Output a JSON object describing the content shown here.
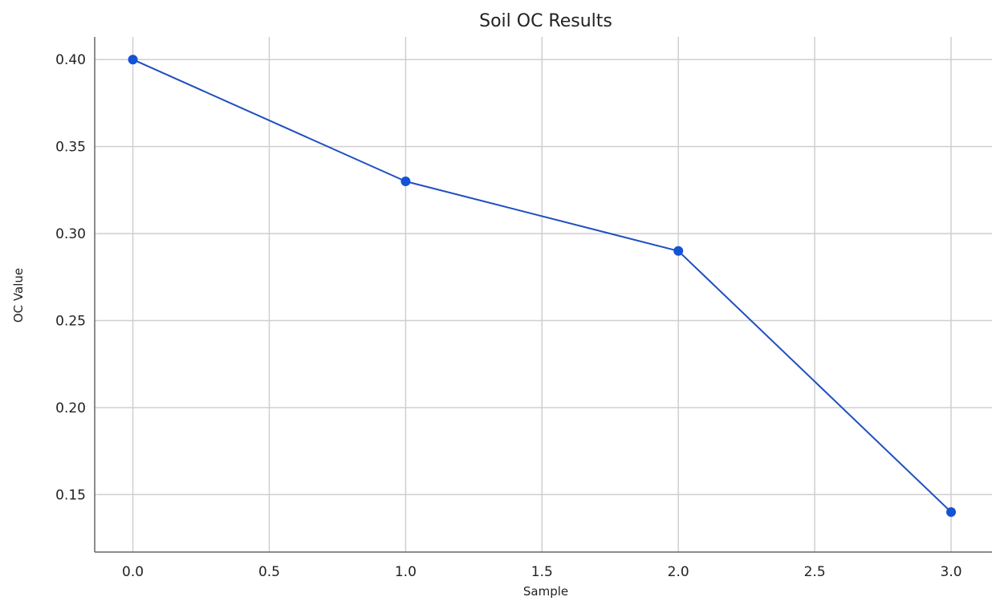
{
  "chart_data": {
    "type": "line",
    "title": "Soil OC Results",
    "xlabel": "Sample",
    "ylabel": "OC Value",
    "xlim": [
      -0.14,
      3.15
    ],
    "ylim": [
      0.117,
      0.413
    ],
    "xticks": [
      0.0,
      0.5,
      1.0,
      1.5,
      2.0,
      2.5,
      3.0
    ],
    "xtick_labels": [
      "0.0",
      "0.5",
      "1.0",
      "1.5",
      "2.0",
      "2.5",
      "3.0"
    ],
    "yticks": [
      0.15,
      0.2,
      0.25,
      0.3,
      0.35,
      0.4
    ],
    "ytick_labels": [
      "0.15",
      "0.20",
      "0.25",
      "0.30",
      "0.35",
      "0.40"
    ],
    "grid": true,
    "series": [
      {
        "x": [
          0,
          1,
          2,
          3
        ],
        "y": [
          0.4,
          0.33,
          0.29,
          0.14
        ],
        "color": "#1f4fbf",
        "marker_color": "#1452d6",
        "marker": "circle"
      }
    ]
  }
}
